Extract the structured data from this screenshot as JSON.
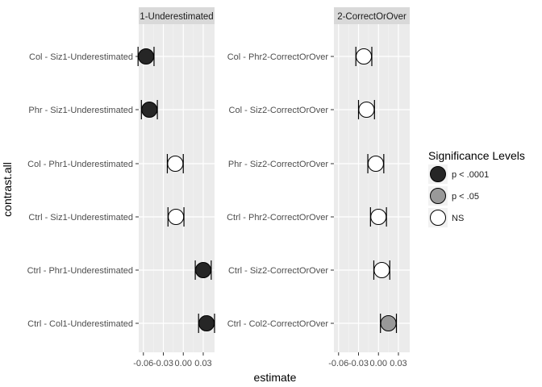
{
  "chart_data": {
    "type": "scatter",
    "xlabel": "estimate",
    "ylabel": "contrast.all",
    "x_ticks": [
      -0.06,
      -0.03,
      0.0,
      0.03
    ],
    "x_tick_labels": [
      "-0.06",
      "-0.03",
      "0.00",
      "0.03"
    ],
    "xlim": [
      -0.067,
      0.047
    ],
    "grid": true,
    "legend": {
      "title": "Significance Levels",
      "position": "right",
      "items": [
        {
          "label": "p < .0001",
          "color": "#262626"
        },
        {
          "label": "p < .05",
          "color": "#999999"
        },
        {
          "label": "NS",
          "color": "#ffffff"
        }
      ]
    },
    "panels": [
      {
        "title": "1-Underestimated",
        "rows": [
          {
            "label": "Col - Siz1-Underestimated",
            "estimate": -0.056,
            "lower": -0.068,
            "upper": -0.044,
            "sig": "p < .0001"
          },
          {
            "label": "Phr - Siz1-Underestimated",
            "estimate": -0.051,
            "lower": -0.063,
            "upper": -0.039,
            "sig": "p < .0001"
          },
          {
            "label": "Col - Phr1-Underestimated",
            "estimate": -0.012,
            "lower": -0.024,
            "upper": 0.0,
            "sig": "NS"
          },
          {
            "label": "Ctrl - Siz1-Underestimated",
            "estimate": -0.011,
            "lower": -0.023,
            "upper": 0.001,
            "sig": "NS"
          },
          {
            "label": "Ctrl - Phr1-Underestimated",
            "estimate": 0.03,
            "lower": 0.018,
            "upper": 0.042,
            "sig": "p < .0001"
          },
          {
            "label": "Ctrl - Col1-Underestimated",
            "estimate": 0.035,
            "lower": 0.023,
            "upper": 0.047,
            "sig": "p < .0001"
          }
        ]
      },
      {
        "title": "2-CorrectOrOver",
        "rows": [
          {
            "label": "Col - Phr2-CorrectOrOver",
            "estimate": -0.022,
            "lower": -0.034,
            "upper": -0.01,
            "sig": "NS"
          },
          {
            "label": "Col - Siz2-CorrectOrOver",
            "estimate": -0.018,
            "lower": -0.03,
            "upper": -0.006,
            "sig": "NS"
          },
          {
            "label": "Phr - Siz2-CorrectOrOver",
            "estimate": -0.004,
            "lower": -0.016,
            "upper": 0.008,
            "sig": "NS"
          },
          {
            "label": "Ctrl - Phr2-CorrectOrOver",
            "estimate": 0.0,
            "lower": -0.012,
            "upper": 0.012,
            "sig": "NS"
          },
          {
            "label": "Ctrl - Siz2-CorrectOrOver",
            "estimate": 0.005,
            "lower": -0.007,
            "upper": 0.017,
            "sig": "NS"
          },
          {
            "label": "Ctrl - Col2-CorrectOrOver",
            "estimate": 0.015,
            "lower": 0.003,
            "upper": 0.027,
            "sig": "p < .05"
          }
        ]
      }
    ]
  }
}
